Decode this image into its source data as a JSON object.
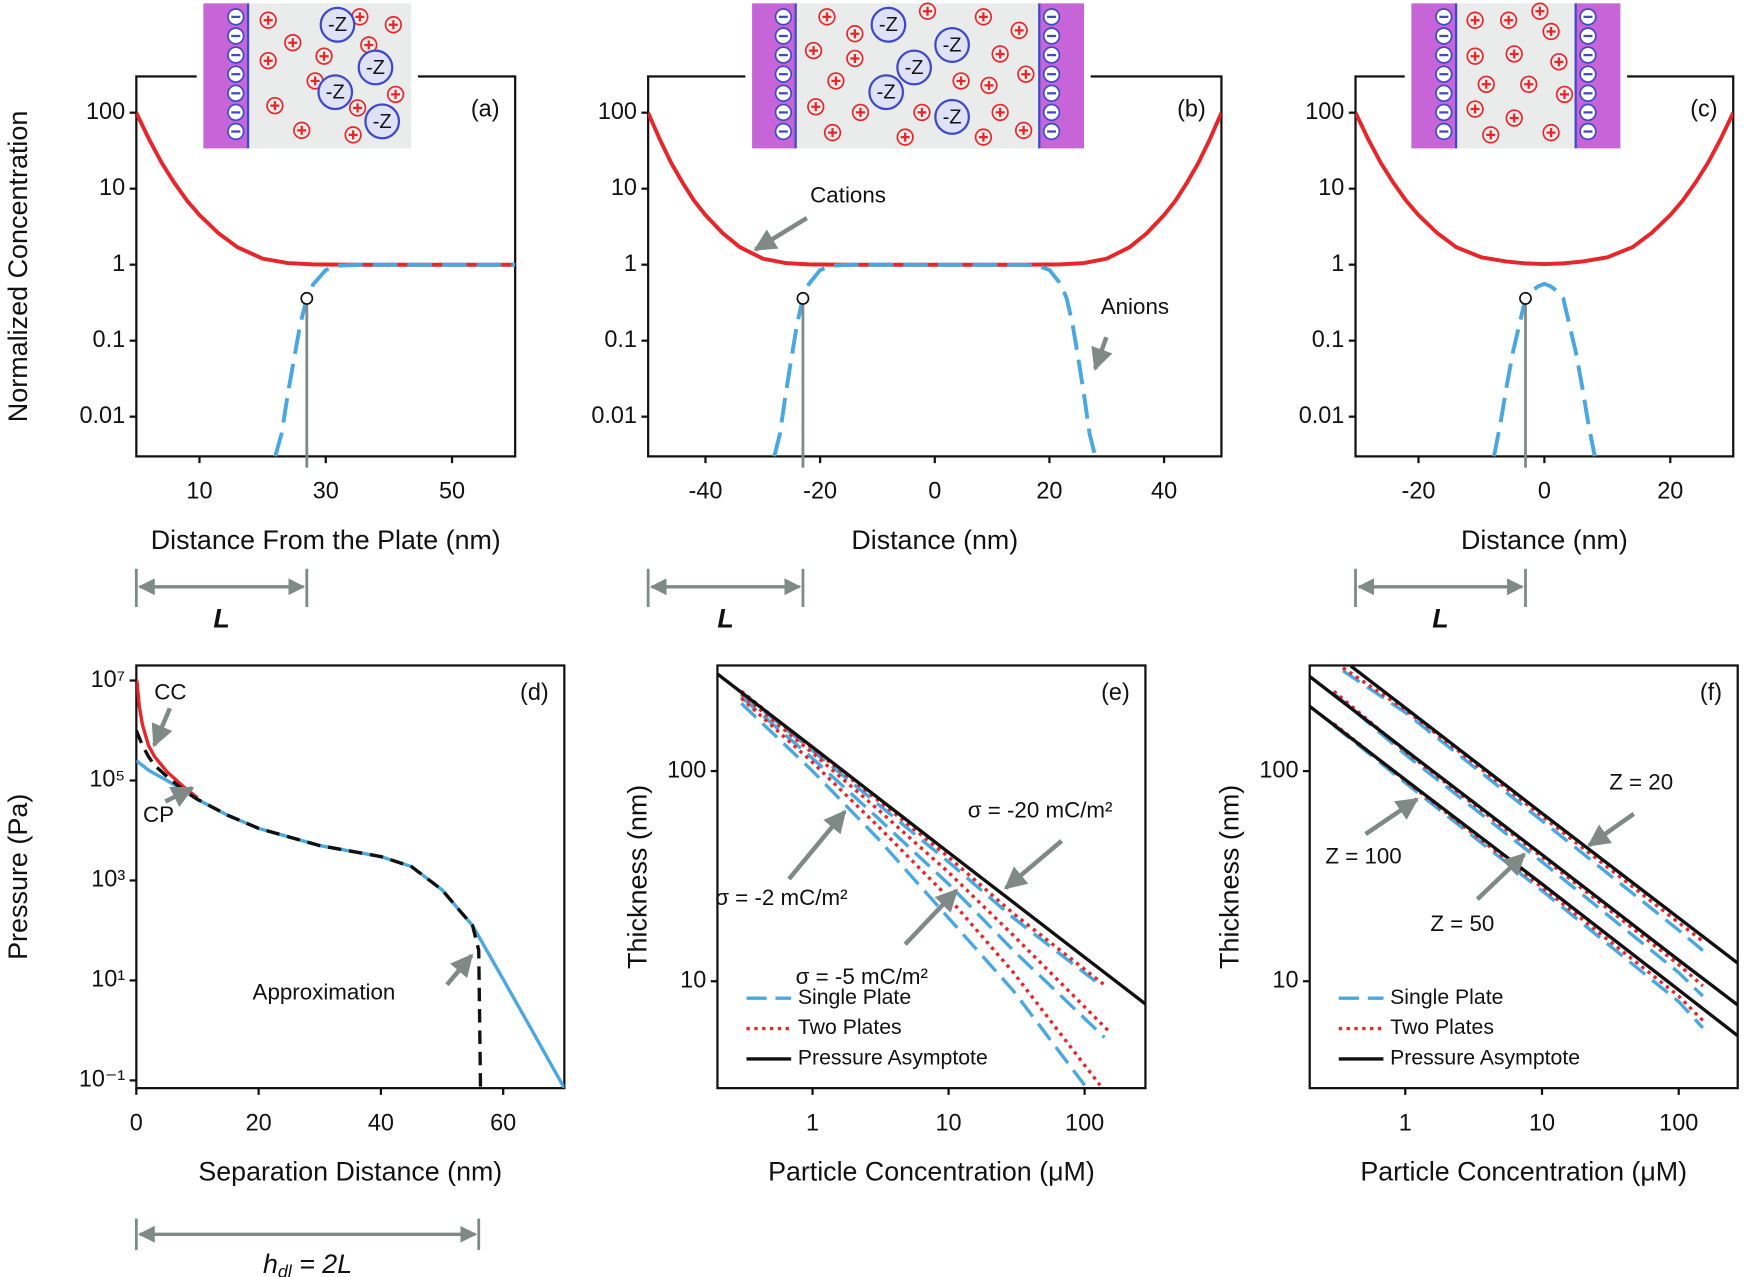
{
  "chart_data": [
    {
      "type": "line",
      "panel_label": "(a)",
      "inset_label": "-Z",
      "x_label": "Distance From the Plate (nm)",
      "y_label": "Normalized Concentration",
      "xlim": [
        0,
        60
      ],
      "xticks": [
        10,
        30,
        50
      ],
      "ylim": [
        0.003,
        300
      ],
      "yscale": "log",
      "yticks": [
        0.01,
        0.1,
        1,
        10,
        100
      ],
      "series": [
        {
          "color": "#e8262a",
          "dash": "solid",
          "x": [
            0,
            2,
            4,
            6,
            8,
            10,
            13,
            16,
            20,
            24,
            28,
            35,
            60
          ],
          "values": [
            100,
            45,
            22,
            12,
            7,
            4.5,
            2.6,
            1.7,
            1.2,
            1.05,
            1.01,
            1,
            1
          ]
        },
        {
          "color": "#4aa8e0",
          "dash": "dashed",
          "x": [
            22,
            23,
            24,
            25,
            26,
            27,
            28,
            30,
            32,
            35,
            60
          ],
          "values": [
            0.003,
            0.006,
            0.02,
            0.06,
            0.17,
            0.36,
            0.55,
            0.85,
            0.97,
            1,
            1
          ]
        }
      ],
      "marker": {
        "x": 27,
        "y": 0.36
      },
      "bracket_label": "L"
    },
    {
      "type": "line",
      "panel_label": "(b)",
      "inset_label": "-Z",
      "x_label": "Distance (nm)",
      "xlim": [
        -50,
        50
      ],
      "xticks": [
        -40,
        -20,
        0,
        20,
        40
      ],
      "ylim": [
        0.003,
        300
      ],
      "yscale": "log",
      "yticks": [
        0.01,
        0.1,
        1,
        10,
        100
      ],
      "annotations": [
        "Cations",
        "Anions"
      ],
      "series": [
        {
          "color": "#e8262a",
          "dash": "solid",
          "x": [
            -50,
            -48,
            -46,
            -44,
            -42,
            -40,
            -37,
            -34,
            -30,
            -26,
            -22,
            -15,
            0,
            15,
            22,
            26,
            30,
            34,
            37,
            40,
            42,
            44,
            46,
            48,
            50
          ],
          "values": [
            100,
            45,
            22,
            12,
            7,
            4.5,
            2.6,
            1.7,
            1.2,
            1.05,
            1.01,
            1,
            1,
            1,
            1.01,
            1.05,
            1.2,
            1.7,
            2.6,
            4.5,
            7,
            12,
            22,
            45,
            100
          ]
        },
        {
          "color": "#4aa8e0",
          "dash": "dashed",
          "x": [
            -28,
            -27,
            -26,
            -25,
            -24,
            -23,
            -22,
            -20,
            -18,
            -15,
            0,
            15,
            18,
            20,
            22,
            23,
            24,
            25,
            26,
            27,
            28
          ],
          "values": [
            0.003,
            0.006,
            0.02,
            0.06,
            0.17,
            0.36,
            0.55,
            0.85,
            0.97,
            1,
            1,
            1,
            0.97,
            0.85,
            0.55,
            0.36,
            0.17,
            0.06,
            0.02,
            0.006,
            0.003
          ]
        }
      ],
      "marker": {
        "x": -23,
        "y": 0.36
      },
      "bracket_label": "L"
    },
    {
      "type": "line",
      "panel_label": "(c)",
      "x_label": "Distance (nm)",
      "xlim": [
        -30,
        30
      ],
      "xticks": [
        -20,
        0,
        20
      ],
      "ylim": [
        0.003,
        300
      ],
      "yscale": "log",
      "yticks": [
        0.01,
        0.1,
        1,
        10,
        100
      ],
      "series": [
        {
          "color": "#e8262a",
          "dash": "solid",
          "x": [
            -30,
            -28,
            -26,
            -24,
            -22,
            -20,
            -17,
            -14,
            -10,
            -6,
            -3,
            0,
            3,
            6,
            10,
            14,
            17,
            20,
            22,
            24,
            26,
            28,
            30
          ],
          "values": [
            100,
            45,
            22,
            12,
            7,
            4.5,
            2.6,
            1.7,
            1.25,
            1.1,
            1.04,
            1.02,
            1.04,
            1.1,
            1.25,
            1.7,
            2.6,
            4.5,
            7,
            12,
            22,
            45,
            100
          ]
        },
        {
          "color": "#4aa8e0",
          "dash": "dashed",
          "x": [
            -8,
            -7,
            -6,
            -5,
            -4,
            -3,
            -2,
            -1,
            0,
            1,
            2,
            3,
            4,
            5,
            6,
            7,
            8
          ],
          "values": [
            0.003,
            0.008,
            0.025,
            0.07,
            0.16,
            0.36,
            0.45,
            0.52,
            0.56,
            0.52,
            0.45,
            0.36,
            0.16,
            0.07,
            0.025,
            0.008,
            0.003
          ]
        }
      ],
      "marker": {
        "x": -3,
        "y": 0.36
      },
      "bracket_label": "L"
    },
    {
      "type": "line",
      "panel_label": "(d)",
      "x_label": "Separation Distance (nm)",
      "y_label": "Pressure (Pa)",
      "xlim": [
        0,
        70
      ],
      "xticks": [
        0,
        20,
        40,
        60
      ],
      "ylim": [
        0.07,
        20000000
      ],
      "yscale": "log",
      "yticks": [
        {
          "value": 0.1,
          "label": "10⁻¹"
        },
        {
          "value": 10,
          "label": "10¹"
        },
        {
          "value": 1000,
          "label": "10³"
        },
        {
          "value": 100000,
          "label": "10⁵"
        },
        {
          "value": 10000000,
          "label": "10⁷"
        }
      ],
      "annotations": [
        "CC",
        "CP",
        "Approximation"
      ],
      "series": [
        {
          "color": "#4aa8e0",
          "dash": "solid",
          "x": [
            0,
            2,
            5,
            8,
            10,
            15,
            20,
            30,
            40,
            45,
            50,
            53,
            55,
            60,
            65,
            70
          ],
          "values": [
            250000,
            160000,
            100000,
            60000,
            42000,
            20000,
            11000,
            5000,
            3000,
            1900,
            650,
            240,
            125,
            10.5,
            0.87,
            0.07
          ]
        },
        {
          "color": "#e8262a",
          "dash": "solid",
          "x": [
            0.1,
            0.5,
            1,
            2,
            3,
            5,
            8,
            10
          ],
          "values": [
            10000000,
            3000000,
            1300000,
            500000,
            300000,
            150000,
            70000,
            45000
          ]
        },
        {
          "color": "#111111",
          "dash": "dashed",
          "x": [
            0,
            1,
            2,
            3,
            5,
            8,
            10,
            15,
            20,
            30,
            40,
            45,
            50,
            53,
            55,
            56,
            56.3
          ],
          "values": [
            1000000,
            500000,
            300000,
            200000,
            120000,
            60000,
            42000,
            20000,
            11000,
            5000,
            3000,
            1900,
            650,
            240,
            125,
            40,
            0.07
          ]
        }
      ],
      "bracket_x": 56,
      "bracket_label": [
        "h",
        "dl",
        " = 2L"
      ]
    },
    {
      "type": "line",
      "panel_label": "(e)",
      "x_label": "Particle Concentration (μM)",
      "y_label": "Thickness (nm)",
      "xscale": "log",
      "xlim": [
        0.2,
        280
      ],
      "xticks": [
        1,
        10,
        100
      ],
      "yscale": "log",
      "ylim": [
        3.1,
        318
      ],
      "yticks": [
        10,
        100
      ],
      "annotations": [
        "σ = -2 mC/m²",
        "σ = -5 mC/m²",
        "σ = -20 mC/m²"
      ],
      "legend": "lower left",
      "series": [
        {
          "name": "Single Plate",
          "color": "#4aa8e0",
          "dash": "dashed",
          "curves": [
            {
              "x": [
                0.3,
                1,
                3,
                10,
                30,
                100
              ],
              "values": [
                210,
                100,
                48,
                20,
                9,
                3.2
              ]
            },
            {
              "x": [
                0.3,
                1,
                3,
                10,
                30,
                140
              ],
              "values": [
                225,
                115,
                60,
                29,
                14,
                5.4
              ]
            },
            {
              "x": [
                0.3,
                1,
                3,
                10,
                30,
                120
              ],
              "values": [
                235,
                125,
                70,
                37,
                20,
                10
              ]
            }
          ]
        },
        {
          "name": "Two Plates",
          "color": "#e8262a",
          "dash": "dotted",
          "curves": [
            {
              "x": [
                0.3,
                1,
                3,
                10,
                30,
                130
              ],
              "values": [
                222,
                110,
                55,
                25,
                11,
                3.2
              ]
            },
            {
              "x": [
                0.3,
                1,
                3,
                10,
                30,
                150
              ],
              "values": [
                232,
                122,
                66,
                33,
                16.5,
                5.8
              ]
            },
            {
              "x": [
                0.3,
                1,
                3,
                10,
                30,
                140
              ],
              "values": [
                240,
                128,
                73,
                39,
                21,
                9.6
              ]
            }
          ]
        },
        {
          "name": "Pressure Asymptote",
          "color": "#111111",
          "dash": "solid",
          "curves": [
            {
              "x": [
                0.2,
                1,
                10,
                100,
                280
              ],
              "values": [
                290,
                130,
                41,
                13,
                7.8
              ]
            }
          ]
        }
      ]
    },
    {
      "type": "line",
      "panel_label": "(f)",
      "x_label": "Particle Concentration (μM)",
      "y_label": "Thickness (nm)",
      "xscale": "log",
      "xlim": [
        0.2,
        270
      ],
      "xticks": [
        1,
        10,
        100
      ],
      "yscale": "log",
      "ylim": [
        3.1,
        318
      ],
      "yticks": [
        10,
        100
      ],
      "annotations": [
        "Z = 20",
        "Z = 100",
        "Z = 50"
      ],
      "legend": "lower left",
      "series": [
        {
          "name": "Single Plate",
          "color": "#4aa8e0",
          "dash": "dashed",
          "curves": [
            {
              "x": [
                0.35,
                1,
                10,
                100,
                150
              ],
              "values": [
                300,
                190,
                58,
                17.5,
                14
              ]
            },
            {
              "x": [
                0.3,
                1,
                10,
                100,
                150
              ],
              "values": [
                235,
                120,
                37,
                11,
                8.5
              ]
            },
            {
              "x": [
                0.3,
                1,
                10,
                100,
                150
              ],
              "values": [
                165,
                88,
                27,
                8,
                6
              ]
            }
          ]
        },
        {
          "name": "Two Plates",
          "color": "#e8262a",
          "dash": "dotted",
          "curves": [
            {
              "x": [
                0.35,
                1,
                10,
                100,
                150
              ],
              "values": [
                310,
                196,
                61,
                19,
                15.5
              ]
            },
            {
              "x": [
                0.3,
                1,
                10,
                100,
                150
              ],
              "values": [
                240,
                124,
                39,
                12,
                9.5
              ]
            },
            {
              "x": [
                0.3,
                1,
                10,
                100,
                150
              ],
              "values": [
                168,
                90,
                28,
                8.5,
                6.5
              ]
            }
          ]
        },
        {
          "name": "Pressure Asymptote",
          "color": "#111111",
          "dash": "solid",
          "curves": [
            {
              "x": [
                0.4,
                1,
                10,
                100,
                270
              ],
              "values": [
                316,
                200,
                63,
                20,
                12.2
              ]
            },
            {
              "x": [
                0.2,
                1,
                10,
                100,
                270
              ],
              "values": [
                282,
                126,
                40,
                12.6,
                7.7
              ]
            },
            {
              "x": [
                0.2,
                1,
                10,
                100,
                270
              ],
              "values": [
                203,
                91,
                29,
                9.1,
                5.5
              ]
            }
          ]
        }
      ]
    }
  ]
}
